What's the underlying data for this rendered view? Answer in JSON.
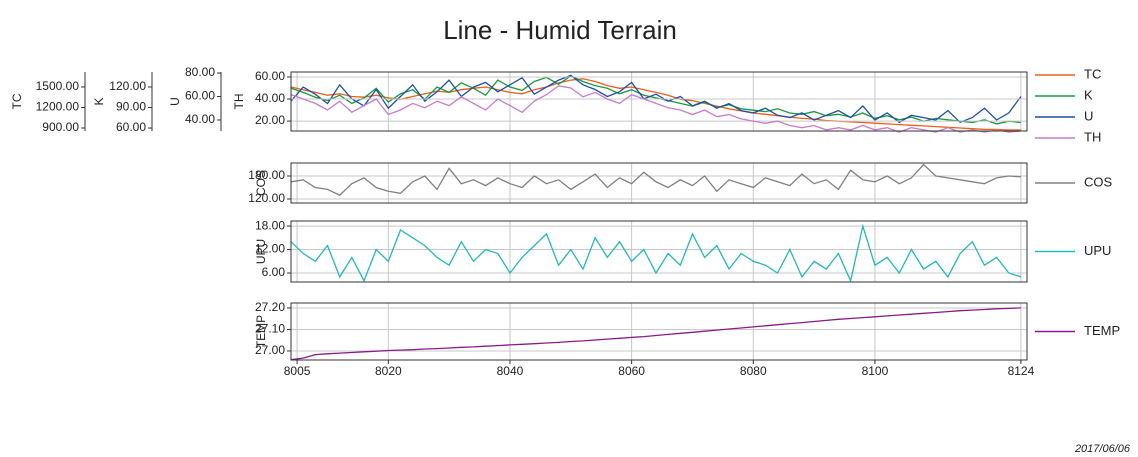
{
  "chart_data": {
    "type": "line",
    "title": "Line - Humid Terrain",
    "date": "2017/06/06",
    "grid": true,
    "x": [
      8004,
      8006,
      8008,
      8010,
      8012,
      8014,
      8016,
      8018,
      8020,
      8022,
      8024,
      8026,
      8028,
      8030,
      8032,
      8034,
      8036,
      8038,
      8040,
      8042,
      8044,
      8046,
      8048,
      8050,
      8052,
      8054,
      8056,
      8058,
      8060,
      8062,
      8064,
      8066,
      8068,
      8070,
      8072,
      8074,
      8076,
      8078,
      8080,
      8082,
      8084,
      8086,
      8088,
      8090,
      8092,
      8094,
      8096,
      8098,
      8100,
      8102,
      8104,
      8106,
      8108,
      8110,
      8112,
      8114,
      8116,
      8118,
      8120,
      8122,
      8124
    ],
    "xlim": [
      8004,
      8125
    ],
    "xticks": [
      8005,
      8020,
      8040,
      8060,
      8080,
      8100,
      8124
    ],
    "panels": [
      {
        "axes": [
          {
            "label": "TC",
            "ylim": [
              856,
              1719
            ],
            "yticks": [
              {
                "value": 900,
                "label": "900.00"
              },
              {
                "value": 1200,
                "label": "1200.00"
              },
              {
                "value": 1500,
                "label": "1500.00"
              }
            ],
            "series": [
              {
                "name": "TC",
                "color": "#e8601c",
                "values": [
                  1500,
                  1460,
                  1420,
                  1380,
                  1400,
                  1360,
                  1350,
                  1380,
                  1340,
                  1320,
                  1360,
                  1400,
                  1440,
                  1420,
                  1460,
                  1480,
                  1500,
                  1460,
                  1420,
                  1400,
                  1460,
                  1500,
                  1560,
                  1600,
                  1620,
                  1580,
                  1520,
                  1480,
                  1500,
                  1460,
                  1420,
                  1380,
                  1320,
                  1300,
                  1260,
                  1220,
                  1180,
                  1150,
                  1120,
                  1100,
                  1080,
                  1060,
                  1040,
                  1030,
                  1010,
                  1000,
                  990,
                  980,
                  970,
                  960,
                  950,
                  940,
                  930,
                  920,
                  910,
                  900,
                  890,
                  880,
                  880,
                  870,
                  870
                ]
              }
            ]
          },
          {
            "label": "K",
            "ylim": [
              55.6,
              141.9
            ],
            "yticks": [
              {
                "value": 60,
                "label": "60.00"
              },
              {
                "value": 90,
                "label": "90.00"
              },
              {
                "value": 120,
                "label": "120.00"
              }
            ],
            "series": [
              {
                "name": "K",
                "color": "#1a9a3a",
                "values": [
                  118,
                  112,
                  105,
                  100,
                  108,
                  96,
                  104,
                  118,
                  98,
                  110,
                  116,
                  102,
                  120,
                  112,
                  126,
                  118,
                  108,
                  130,
                  120,
                  115,
                  128,
                  134,
                  124,
                  136,
                  128,
                  122,
                  118,
                  110,
                  116,
                  108,
                  104,
                  100,
                  96,
                  92,
                  98,
                  90,
                  94,
                  88,
                  86,
                  84,
                  88,
                  82,
                  80,
                  84,
                  78,
                  80,
                  76,
                  82,
                  74,
                  78,
                  72,
                  76,
                  70,
                  74,
                  72,
                  70,
                  68,
                  72,
                  66,
                  70,
                  68
                ]
              }
            ]
          },
          {
            "label": "U",
            "ylim": [
              30.6,
              80.9
            ],
            "yticks": [
              {
                "value": 40,
                "label": "40.00"
              },
              {
                "value": 60,
                "label": "60.00"
              },
              {
                "value": 80,
                "label": "80.00"
              }
            ],
            "series": [
              {
                "name": "U",
                "color": "#1f4fa8",
                "values": [
                  56,
                  68,
                  62,
                  54,
                  70,
                  58,
                  52,
                  66,
                  50,
                  60,
                  70,
                  56,
                  64,
                  74,
                  60,
                  68,
                  72,
                  64,
                  70,
                  76,
                  62,
                  68,
                  74,
                  78,
                  70,
                  66,
                  60,
                  64,
                  72,
                  58,
                  62,
                  56,
                  60,
                  52,
                  56,
                  50,
                  54,
                  48,
                  46,
                  50,
                  44,
                  42,
                  46,
                  40,
                  44,
                  48,
                  42,
                  52,
                  40,
                  46,
                  38,
                  44,
                  42,
                  40,
                  48,
                  38,
                  42,
                  50,
                  40,
                  46,
                  60
                ]
              }
            ]
          },
          {
            "label": "TH",
            "ylim": [
              11,
              64.5
            ],
            "yticks": [
              {
                "value": 20,
                "label": "20.00"
              },
              {
                "value": 40,
                "label": "40.00"
              },
              {
                "value": 60,
                "label": "60.00"
              }
            ],
            "series": [
              {
                "name": "TH",
                "color": "#c77cc8",
                "values": [
                  44,
                  40,
                  36,
                  30,
                  38,
                  28,
                  34,
                  40,
                  26,
                  30,
                  36,
                  32,
                  38,
                  34,
                  42,
                  36,
                  30,
                  40,
                  34,
                  28,
                  38,
                  44,
                  52,
                  50,
                  42,
                  46,
                  40,
                  36,
                  44,
                  40,
                  36,
                  32,
                  30,
                  26,
                  30,
                  24,
                  26,
                  22,
                  20,
                  18,
                  20,
                  16,
                  14,
                  16,
                  12,
                  14,
                  12,
                  16,
                  12,
                  14,
                  10,
                  14,
                  12,
                  10,
                  14,
                  10,
                  12,
                  10,
                  12,
                  10,
                  11
                ]
              }
            ]
          }
        ]
      },
      {
        "axes": [
          {
            "label": "COS",
            "ylim": [
              109.6,
              213.9
            ],
            "yticks": [
              {
                "value": 120,
                "label": "120.00"
              },
              {
                "value": 180,
                "label": "180.00"
              }
            ],
            "series": [
              {
                "name": "COS",
                "color": "#808080",
                "values": [
                  165,
                  170,
                  150,
                  145,
                  130,
                  160,
                  175,
                  150,
                  140,
                  135,
                  165,
                  180,
                  145,
                  200,
                  160,
                  170,
                  155,
                  175,
                  160,
                  150,
                  180,
                  160,
                  170,
                  145,
                  165,
                  185,
                  150,
                  175,
                  160,
                  190,
                  165,
                  150,
                  170,
                  155,
                  180,
                  140,
                  170,
                  160,
                  150,
                  175,
                  165,
                  155,
                  185,
                  160,
                  170,
                  145,
                  195,
                  170,
                  165,
                  180,
                  160,
                  175,
                  210,
                  180,
                  175,
                  170,
                  165,
                  160,
                  175,
                  180,
                  178
                ]
              }
            ]
          }
        ]
      },
      {
        "axes": [
          {
            "label": "UPU",
            "ylim": [
              3.7,
              19.3
            ],
            "yticks": [
              {
                "value": 6,
                "label": "6.00"
              },
              {
                "value": 12,
                "label": "12.00"
              },
              {
                "value": 18,
                "label": "18.00"
              }
            ],
            "series": [
              {
                "name": "UPU",
                "color": "#27b7b7",
                "values": [
                  14,
                  11,
                  9,
                  13,
                  5,
                  10,
                  4,
                  12,
                  9,
                  17,
                  15,
                  13,
                  10,
                  8,
                  14,
                  9,
                  12,
                  11,
                  6,
                  10,
                  13,
                  16,
                  8,
                  12,
                  7,
                  15,
                  10,
                  14,
                  9,
                  12,
                  6,
                  11,
                  8,
                  16,
                  10,
                  13,
                  7,
                  11,
                  9,
                  8,
                  6,
                  12,
                  5,
                  9,
                  7,
                  11,
                  4,
                  18,
                  8,
                  10,
                  6,
                  12,
                  7,
                  9,
                  5,
                  11,
                  14,
                  8,
                  10,
                  6,
                  5
                ]
              }
            ]
          }
        ]
      },
      {
        "axes": [
          {
            "label": "TEMP",
            "ylim": [
              26.958,
              27.223
            ],
            "yticks": [
              {
                "value": 27,
                "label": "27.00"
              },
              {
                "value": 27.1,
                "label": "27.10"
              },
              {
                "value": 27.2,
                "label": "27.20"
              }
            ],
            "series": [
              {
                "name": "TEMP",
                "color": "#8b1a89",
                "values": [
                  26.96,
                  26.967,
                  26.983,
                  26.987,
                  26.99,
                  26.993,
                  26.996,
                  26.999,
                  27.002,
                  27.004,
                  27.006,
                  27.009,
                  27.011,
                  27.014,
                  27.017,
                  27.019,
                  27.022,
                  27.025,
                  27.028,
                  27.031,
                  27.034,
                  27.037,
                  27.04,
                  27.044,
                  27.047,
                  27.051,
                  27.055,
                  27.059,
                  27.063,
                  27.067,
                  27.072,
                  27.077,
                  27.082,
                  27.087,
                  27.092,
                  27.097,
                  27.102,
                  27.107,
                  27.112,
                  27.117,
                  27.122,
                  27.127,
                  27.132,
                  27.137,
                  27.142,
                  27.147,
                  27.151,
                  27.155,
                  27.159,
                  27.163,
                  27.167,
                  27.171,
                  27.175,
                  27.179,
                  27.183,
                  27.187,
                  27.19,
                  27.193,
                  27.196,
                  27.198,
                  27.2
                ]
              }
            ]
          }
        ]
      }
    ]
  }
}
